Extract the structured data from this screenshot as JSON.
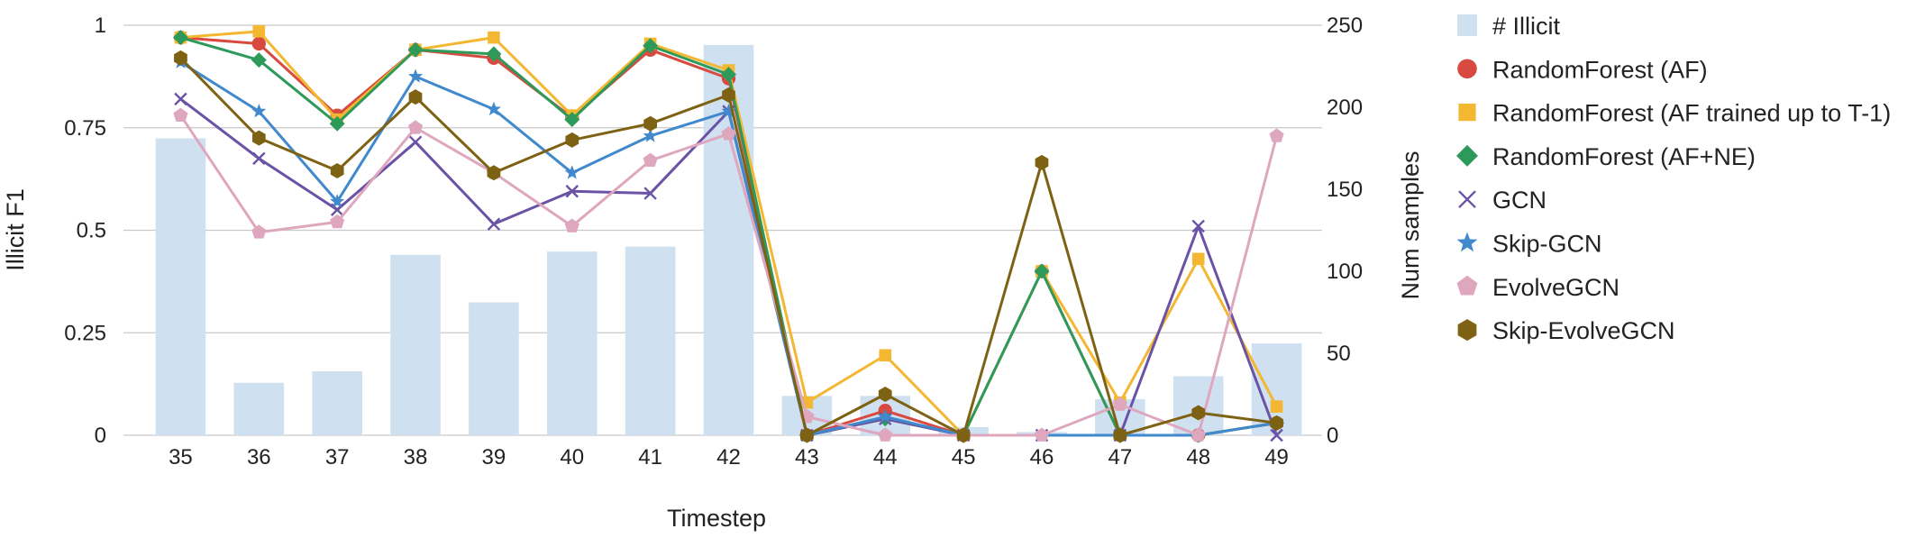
{
  "chart_data": {
    "type": "bar+line",
    "title": "",
    "xlabel": "Timestep",
    "ylabel_left": "Illicit F1",
    "ylabel_right": "Num samples",
    "categories": [
      "35",
      "36",
      "37",
      "38",
      "39",
      "40",
      "41",
      "42",
      "43",
      "44",
      "45",
      "46",
      "47",
      "48",
      "49"
    ],
    "ylim_left": [
      0,
      1
    ],
    "yticks_left": [
      "0",
      "0.25",
      "0.5",
      "0.75",
      "1"
    ],
    "yticks_left_values": [
      0,
      0.25,
      0.5,
      0.75,
      1
    ],
    "ylim_right": [
      0,
      250
    ],
    "yticks_right": [
      "0",
      "50",
      "100",
      "150",
      "200",
      "250"
    ],
    "yticks_right_values": [
      0,
      50,
      100,
      150,
      200,
      250
    ],
    "grid": true,
    "legend_position": "right",
    "bars": {
      "name": "# Illicit",
      "color": "#cfe0f1",
      "values": [
        181,
        32,
        39,
        110,
        81,
        112,
        115,
        238,
        24,
        24,
        5,
        2,
        22,
        36,
        56
      ]
    },
    "series": [
      {
        "name": "RandomForest (AF)",
        "color": "#d84a3f",
        "marker": "circle",
        "values": [
          0.97,
          0.955,
          0.78,
          0.94,
          0.92,
          0.775,
          0.94,
          0.87,
          0,
          0.06,
          0,
          0.4,
          0,
          0,
          0.03
        ]
      },
      {
        "name": "RandomForest  (AF trained up to T-1)",
        "color": "#f3b731",
        "marker": "square",
        "values": [
          0.97,
          0.985,
          0.77,
          0.94,
          0.97,
          0.78,
          0.955,
          0.89,
          0.08,
          0.195,
          0,
          0.4,
          0.08,
          0.43,
          0.07
        ]
      },
      {
        "name": "RandomForest (AF+NE)",
        "color": "#2d9a5a",
        "marker": "diamond",
        "values": [
          0.97,
          0.915,
          0.76,
          0.94,
          0.93,
          0.77,
          0.95,
          0.88,
          0,
          0.04,
          0,
          0.4,
          0,
          0,
          0.03
        ]
      },
      {
        "name": "GCN",
        "color": "#6a52a5",
        "marker": "x",
        "values": [
          0.82,
          0.675,
          0.55,
          0.715,
          0.515,
          0.595,
          0.59,
          0.79,
          0,
          0.04,
          0,
          0,
          0,
          0.51,
          0
        ]
      },
      {
        "name": "Skip-GCN",
        "color": "#4189cd",
        "marker": "star",
        "values": [
          0.91,
          0.79,
          0.57,
          0.875,
          0.795,
          0.64,
          0.73,
          0.79,
          0,
          0.045,
          0,
          0,
          0,
          0,
          0.03
        ]
      },
      {
        "name": "EvolveGCN",
        "color": "#dea7be",
        "marker": "pentagon",
        "values": [
          0.78,
          0.495,
          0.52,
          0.75,
          0.64,
          0.51,
          0.67,
          0.735,
          0.045,
          0,
          0,
          0,
          0.075,
          0,
          0.73
        ]
      },
      {
        "name": "Skip-EvolveGCN",
        "color": "#7e6214",
        "marker": "hexagon",
        "values": [
          0.92,
          0.725,
          0.645,
          0.825,
          0.64,
          0.72,
          0.76,
          0.83,
          0,
          0.1,
          0,
          0.665,
          0,
          0.055,
          0.03
        ]
      }
    ]
  }
}
